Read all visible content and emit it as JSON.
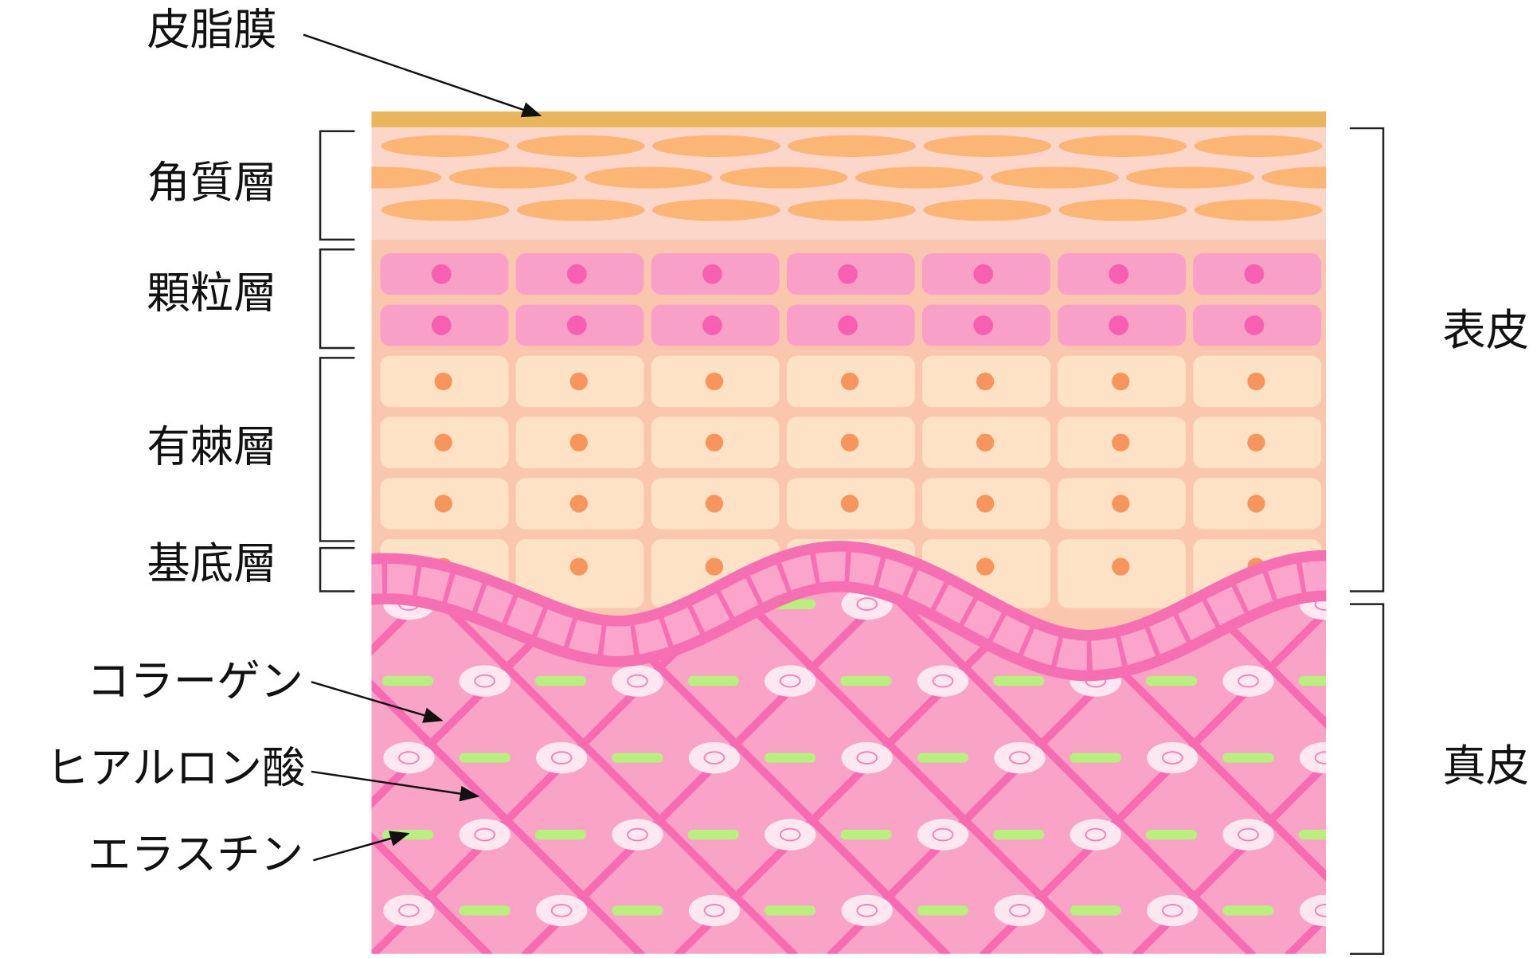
{
  "layers": [
    {
      "label": "皮脂膜"
    },
    {
      "label": "角質層"
    },
    {
      "label": "顆粒層"
    },
    {
      "label": "有棘層"
    },
    {
      "label": "基底層"
    }
  ],
  "components": [
    {
      "label": "コラーゲン"
    },
    {
      "label": "ヒアルロン酸"
    },
    {
      "label": "エラスチン"
    }
  ],
  "regions": [
    {
      "label": "表皮"
    },
    {
      "label": "真皮"
    }
  ]
}
